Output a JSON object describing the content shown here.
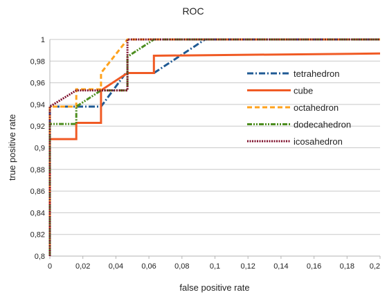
{
  "chart_data": {
    "type": "line",
    "title": "ROC",
    "xlabel": "false positive rate",
    "ylabel": "true positive rate",
    "xlim": [
      0,
      0.2
    ],
    "ylim": [
      0.8,
      1.0
    ],
    "xticks": [
      "0",
      "0,02",
      "0,04",
      "0,06",
      "0,08",
      "0,1",
      "0,12",
      "0,14",
      "0,16",
      "0,18",
      "0,2"
    ],
    "yticks": [
      "0,8",
      "0,82",
      "0,84",
      "0,86",
      "0,88",
      "0,9",
      "0,92",
      "0,94",
      "0,96",
      "0,98",
      "1"
    ],
    "grid": "horizontal",
    "legend_position": "right",
    "series": [
      {
        "name": "tetrahedron",
        "color": "#1f5a94",
        "dash": "dash-dot",
        "x": [
          0,
          0,
          0.031,
          0.046,
          0.063,
          0.094,
          0.2
        ],
        "y": [
          0.8,
          0.938,
          0.938,
          0.969,
          0.969,
          1.0,
          1.0
        ]
      },
      {
        "name": "cube",
        "color": "#f05a24",
        "dash": "solid",
        "x": [
          0,
          0,
          0.016,
          0.016,
          0.031,
          0.031,
          0.047,
          0.063,
          0.063,
          0.2
        ],
        "y": [
          0.815,
          0.908,
          0.908,
          0.923,
          0.923,
          0.953,
          0.969,
          0.969,
          0.985,
          0.987
        ]
      },
      {
        "name": "octahedron",
        "color": "#ffa21c",
        "dash": "dash",
        "x": [
          0,
          0,
          0.016,
          0.016,
          0.031,
          0.031,
          0.047,
          0.2
        ],
        "y": [
          0.8,
          0.938,
          0.938,
          0.954,
          0.954,
          0.969,
          1.0,
          1.0
        ]
      },
      {
        "name": "dodecahedron",
        "color": "#4d8e1f",
        "dash": "dash-dot-dot",
        "x": [
          0,
          0,
          0.016,
          0.016,
          0.031,
          0.047,
          0.047,
          0.063,
          0.2
        ],
        "y": [
          0.8,
          0.922,
          0.922,
          0.938,
          0.953,
          0.953,
          0.984,
          1.0,
          1.0
        ]
      },
      {
        "name": "icosahedron",
        "color": "#7e0f2b",
        "dash": "dotted",
        "x": [
          0,
          0,
          0.016,
          0.047,
          0.047,
          0.2
        ],
        "y": [
          0.8,
          0.938,
          0.953,
          0.953,
          1.0,
          1.0
        ]
      }
    ]
  }
}
